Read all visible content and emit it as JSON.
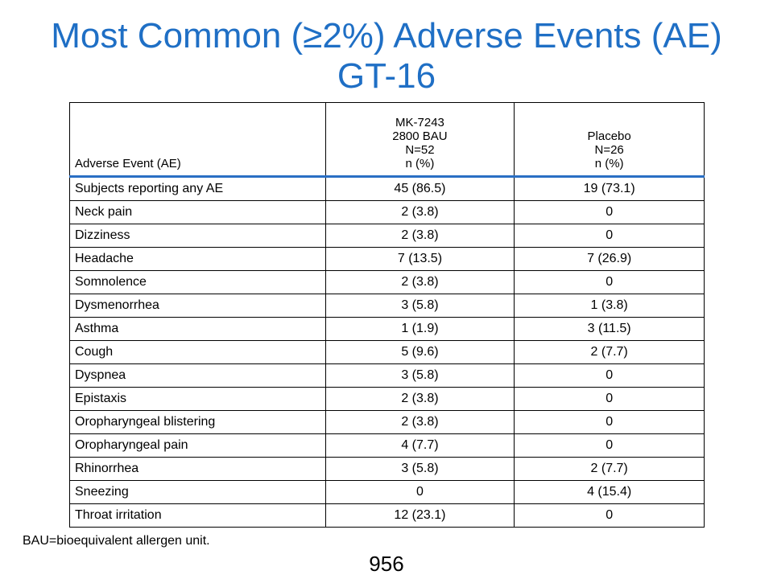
{
  "title": {
    "line1": "Most Common (≥2%) Adverse Events (AE)",
    "line2": "GT-16"
  },
  "table": {
    "headers": {
      "event": "Adverse Event (AE)",
      "mk": [
        "MK-7243",
        "2800 BAU",
        "N=52",
        "n (%)"
      ],
      "placebo": [
        "Placebo",
        "N=26",
        "n (%)"
      ]
    },
    "rows": [
      {
        "event": "Subjects reporting any AE",
        "mk": "45 (86.5)",
        "placebo": "19 (73.1)"
      },
      {
        "event": "Neck pain",
        "mk": "2 (3.8)",
        "placebo": "0"
      },
      {
        "event": "Dizziness",
        "mk": "2 (3.8)",
        "placebo": "0"
      },
      {
        "event": "Headache",
        "mk": "7 (13.5)",
        "placebo": "7 (26.9)"
      },
      {
        "event": "Somnolence",
        "mk": "2 (3.8)",
        "placebo": "0"
      },
      {
        "event": "Dysmenorrhea",
        "mk": "3 (5.8)",
        "placebo": "1 (3.8)"
      },
      {
        "event": "Asthma",
        "mk": "1 (1.9)",
        "placebo": "3 (11.5)"
      },
      {
        "event": "Cough",
        "mk": "5 (9.6)",
        "placebo": "2 (7.7)"
      },
      {
        "event": "Dyspnea",
        "mk": "3 (5.8)",
        "placebo": "0"
      },
      {
        "event": "Epistaxis",
        "mk": "2 (3.8)",
        "placebo": "0"
      },
      {
        "event": "Oropharyngeal blistering",
        "mk": "2 (3.8)",
        "placebo": "0"
      },
      {
        "event": "Oropharyngeal pain",
        "mk": "4 (7.7)",
        "placebo": "0"
      },
      {
        "event": "Rhinorrhea",
        "mk": "3 (5.8)",
        "placebo": "2 (7.7)"
      },
      {
        "event": "Sneezing",
        "mk": "0",
        "placebo": "4 (15.4)"
      },
      {
        "event": "Throat irritation",
        "mk": "12 (23.1)",
        "placebo": "0"
      }
    ]
  },
  "footnote": "BAU=bioequivalent allergen unit.",
  "page_number": "956",
  "colors": {
    "title": "#1f6fc5",
    "header_rule": "#2a6fc4"
  }
}
